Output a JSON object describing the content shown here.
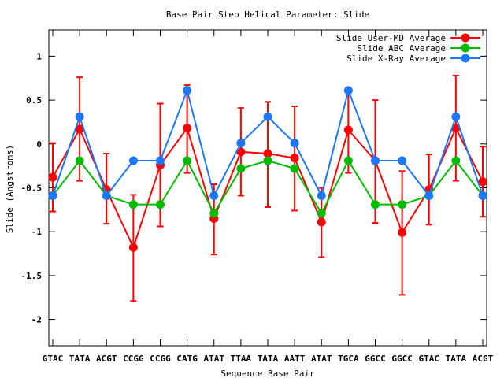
{
  "chart_data": {
    "type": "line",
    "title": "Base Pair Step Helical Parameter: Slide",
    "xlabel": "Sequence Base Pair",
    "ylabel": "Slide (Angstroms)",
    "categories": [
      "GTAC",
      "TATA",
      "ACGT",
      "CCGG",
      "CCGG",
      "CATG",
      "ATAT",
      "TTAA",
      "TATA",
      "AATT",
      "ATAT",
      "TGCA",
      "GGCC",
      "GGCC",
      "GTAC",
      "TATA",
      "ACGT"
    ],
    "ylim": [
      -2.3,
      1.3
    ],
    "yticks": [
      1,
      0.5,
      0,
      -0.5,
      -1,
      -1.5,
      -2
    ],
    "ytick_labels": [
      "1",
      "0.5",
      "0",
      "-0.5",
      "-1",
      "-1.5",
      "-2"
    ],
    "grid": false,
    "legend_position": "top-right",
    "series": [
      {
        "name": "Slide User-MD Average",
        "color": "#ff0000",
        "values": [
          -0.38,
          0.17,
          -0.52,
          -1.18,
          -0.24,
          0.18,
          -0.85,
          -0.09,
          -0.11,
          -0.16,
          -0.89,
          0.16,
          -0.19,
          -1.01,
          -0.52,
          0.18,
          -0.43
        ],
        "err_low": [
          -0.77,
          -0.42,
          -0.91,
          -1.79,
          -0.94,
          -0.33,
          -1.26,
          -0.59,
          -0.72,
          -0.76,
          -1.29,
          -0.33,
          -0.9,
          -1.72,
          -0.92,
          -0.42,
          -0.83
        ],
        "err_high": [
          0.01,
          0.76,
          -0.11,
          -0.58,
          0.46,
          0.67,
          -0.46,
          0.41,
          0.48,
          0.43,
          -0.5,
          0.64,
          0.5,
          -0.31,
          -0.12,
          0.78,
          -0.03
        ]
      },
      {
        "name": "Slide ABC Average",
        "color": "#00bb00",
        "values": [
          -0.59,
          -0.19,
          -0.59,
          -0.69,
          -0.69,
          -0.19,
          -0.79,
          -0.28,
          -0.19,
          -0.28,
          -0.79,
          -0.19,
          -0.69,
          -0.69,
          -0.59,
          -0.19,
          -0.59
        ]
      },
      {
        "name": "Slide X-Ray Average",
        "color": "#1a78ff",
        "values": [
          -0.59,
          0.31,
          -0.59,
          -0.19,
          -0.19,
          0.61,
          -0.59,
          0.01,
          0.31,
          0.01,
          -0.59,
          0.61,
          -0.19,
          -0.19,
          -0.59,
          0.31,
          -0.59
        ]
      }
    ]
  }
}
